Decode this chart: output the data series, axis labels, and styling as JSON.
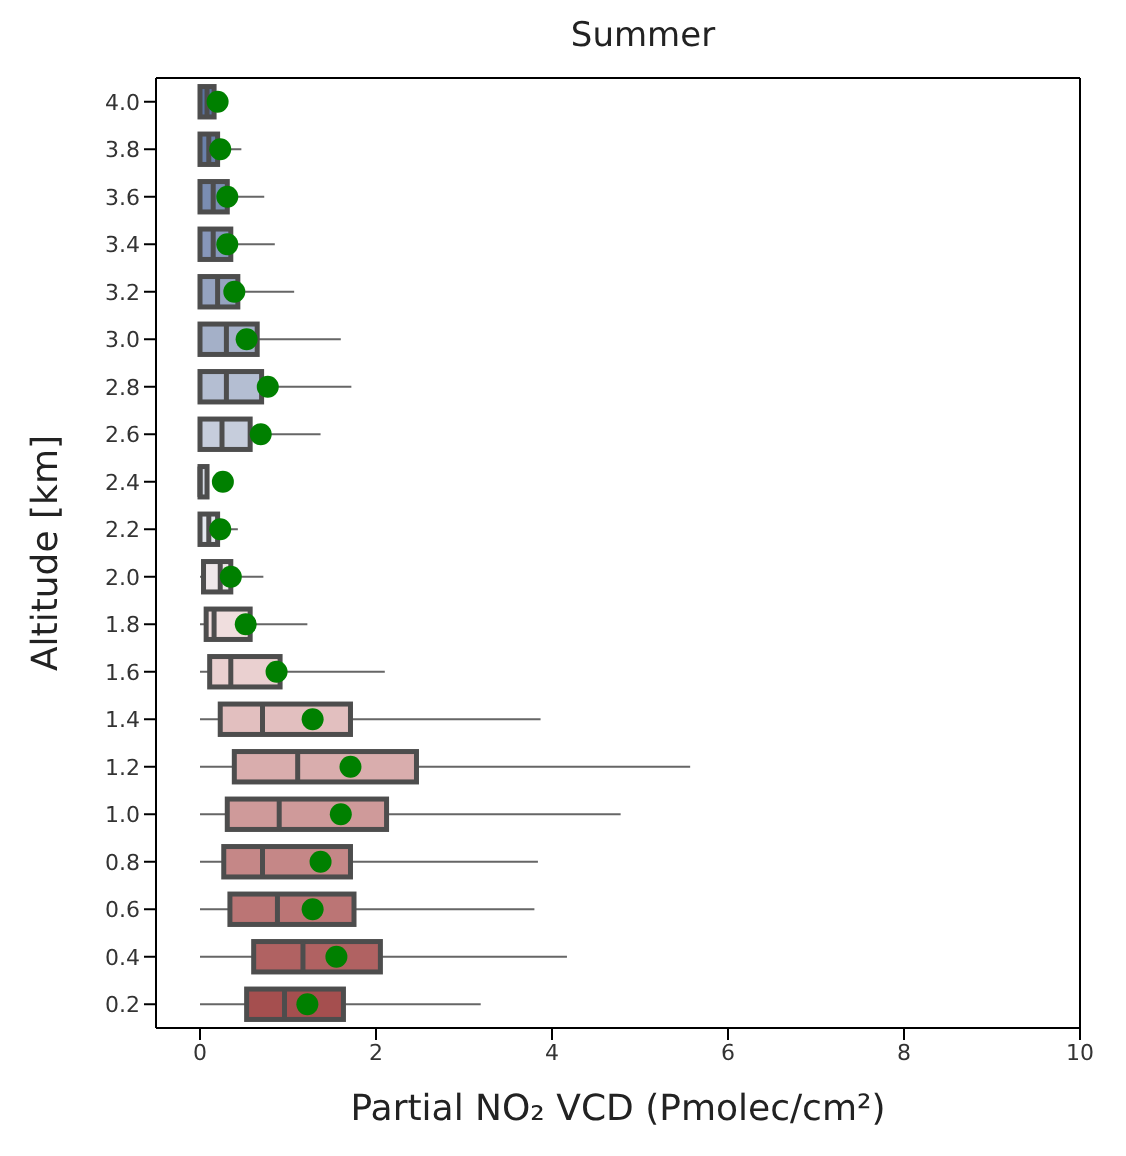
{
  "chart_data": {
    "type": "box",
    "title": "Summer",
    "xlabel": "Partial NO₂ VCD (Pmolec/cm²)",
    "ylabel": "Altitude [km]",
    "orientation": "horizontal",
    "categories": [
      "4.0",
      "3.8",
      "3.6",
      "3.4",
      "3.2",
      "3.0",
      "2.8",
      "2.6",
      "2.4",
      "2.2",
      "2.0",
      "1.8",
      "1.6",
      "1.4",
      "1.2",
      "1.0",
      "0.8",
      "0.6",
      "0.4",
      "0.2"
    ],
    "boxes": [
      {
        "low": 0,
        "q1": 0,
        "median": 0.08,
        "q3": 0.16,
        "high": 0.16
      },
      {
        "low": 0,
        "q1": 0,
        "median": 0.1,
        "q3": 0.2,
        "high": 0.47
      },
      {
        "low": 0,
        "q1": 0,
        "median": 0.15,
        "q3": 0.31,
        "high": 0.73
      },
      {
        "low": 0,
        "q1": 0,
        "median": 0.15,
        "q3": 0.35,
        "high": 0.85
      },
      {
        "low": 0,
        "q1": 0,
        "median": 0.2,
        "q3": 0.43,
        "high": 1.07
      },
      {
        "low": 0,
        "q1": 0,
        "median": 0.3,
        "q3": 0.65,
        "high": 1.6
      },
      {
        "low": 0,
        "q1": 0,
        "median": 0.3,
        "q3": 0.7,
        "high": 1.72
      },
      {
        "low": 0,
        "q1": 0,
        "median": 0.25,
        "q3": 0.57,
        "high": 1.37
      },
      {
        "low": 0,
        "q1": 0,
        "median": 0,
        "q3": 0.08,
        "high": 0.08
      },
      {
        "low": 0,
        "q1": 0,
        "median": 0.1,
        "q3": 0.2,
        "high": 0.43
      },
      {
        "low": 0,
        "q1": 0.04,
        "median": 0.23,
        "q3": 0.35,
        "high": 0.72
      },
      {
        "low": 0,
        "q1": 0.07,
        "median": 0.16,
        "q3": 0.57,
        "high": 1.22
      },
      {
        "low": 0,
        "q1": 0.11,
        "median": 0.35,
        "q3": 0.91,
        "high": 2.1
      },
      {
        "low": 0,
        "q1": 0.23,
        "median": 0.71,
        "q3": 1.71,
        "high": 3.87
      },
      {
        "low": 0,
        "q1": 0.39,
        "median": 1.11,
        "q3": 2.46,
        "high": 5.57
      },
      {
        "low": 0,
        "q1": 0.31,
        "median": 0.9,
        "q3": 2.12,
        "high": 4.78
      },
      {
        "low": 0,
        "q1": 0.27,
        "median": 0.71,
        "q3": 1.71,
        "high": 3.84
      },
      {
        "low": 0,
        "q1": 0.34,
        "median": 0.88,
        "q3": 1.75,
        "high": 3.8
      },
      {
        "low": 0,
        "q1": 0.61,
        "median": 1.17,
        "q3": 2.05,
        "high": 4.17
      },
      {
        "low": 0,
        "q1": 0.53,
        "median": 0.96,
        "q3": 1.63,
        "high": 3.19
      }
    ],
    "colors": [
      "#5a72a0",
      "#6a80aa",
      "#7a8db2",
      "#8797ba",
      "#95a3c0",
      "#a4b0c8",
      "#b4bed2",
      "#c6cddc",
      "#d6dbe5",
      "#e4e7ee",
      "#efe8ea",
      "#f0dede",
      "#ead0d0",
      "#e2bfbf",
      "#d9adad",
      "#cf9a9a",
      "#c58787",
      "#bb7575",
      "#b06262",
      "#a54f4f"
    ],
    "series": [
      {
        "type": "scatter",
        "color": "#008000",
        "x": [
          "4.0",
          "3.8",
          "3.6",
          "3.4",
          "3.2",
          "3.0",
          "2.8",
          "2.6",
          "2.4",
          "2.2",
          "2.0",
          "1.8",
          "1.6",
          "1.4",
          "1.2",
          "1.0",
          "0.8",
          "0.6",
          "0.4",
          "0.2"
        ],
        "values": [
          0.2,
          0.23,
          0.31,
          0.31,
          0.39,
          0.53,
          0.77,
          0.69,
          0.26,
          0.23,
          0.35,
          0.52,
          0.87,
          1.28,
          1.71,
          1.6,
          1.37,
          1.28,
          1.55,
          1.22
        ]
      }
    ],
    "xlim": [
      -0.5,
      10
    ],
    "xticks": [
      0,
      2,
      4,
      6,
      8,
      10
    ],
    "grid": false,
    "legend": false,
    "marker": "circle"
  }
}
